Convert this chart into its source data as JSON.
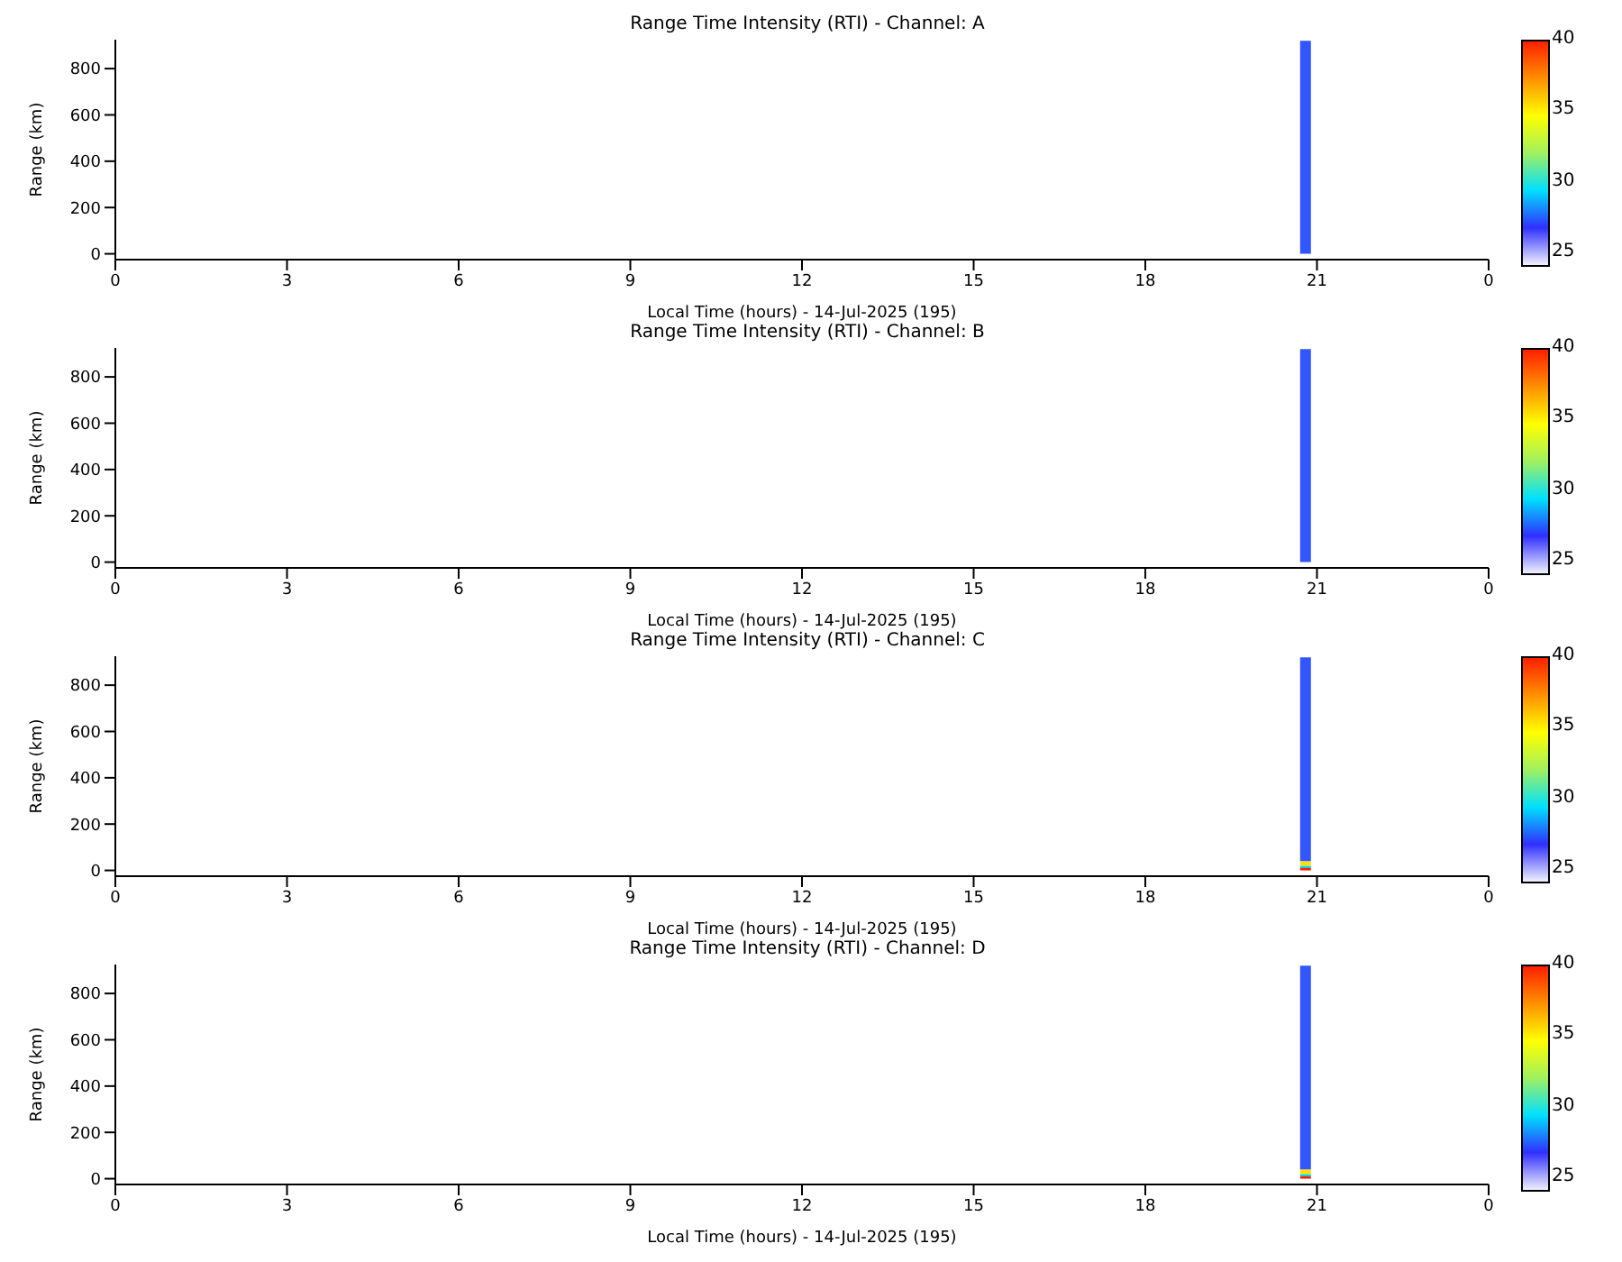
{
  "chart_data": [
    {
      "type": "bar",
      "stacked": true,
      "title": "Range Time Intensity (RTI) - Channel: A",
      "xlabel": "Local Time (hours) - 14-Jul-2025 (195)",
      "ylabel": "Range (km)",
      "x": [
        "2025-07-14T20:48"
      ],
      "series": [
        {
          "color": "#3355ff",
          "values": [
            920
          ]
        }
      ],
      "xlim": [
        "2025-07-14T00:00",
        "2025-07-15T00:00"
      ],
      "xticks": [
        {
          "value": "2025-07-14T00:00",
          "label": "0"
        },
        {
          "value": "2025-07-14T03:00",
          "label": "3"
        },
        {
          "value": "2025-07-14T06:00",
          "label": "6"
        },
        {
          "value": "2025-07-14T09:00",
          "label": "9"
        },
        {
          "value": "2025-07-14T12:00",
          "label": "12"
        },
        {
          "value": "2025-07-14T15:00",
          "label": "15"
        },
        {
          "value": "2025-07-14T18:00",
          "label": "18"
        },
        {
          "value": "2025-07-14T21:00",
          "label": "21"
        },
        {
          "value": "2025-07-15T00:00",
          "label": "0"
        }
      ],
      "ylim": [
        -25,
        925
      ],
      "yticks": [
        0,
        200,
        400,
        600,
        800
      ],
      "clim": [
        24,
        40
      ],
      "cticks": [
        25,
        30,
        35,
        40
      ],
      "grid": false,
      "legend": false
    },
    {
      "type": "bar",
      "stacked": true,
      "title": "Range Time Intensity (RTI) - Channel: B",
      "xlabel": "Local Time (hours) - 14-Jul-2025 (195)",
      "ylabel": "Range (km)",
      "x": [
        "2025-07-14T20:48"
      ],
      "series": [
        {
          "color": "#3355ff",
          "values": [
            920
          ]
        }
      ],
      "xlim": [
        "2025-07-14T00:00",
        "2025-07-15T00:00"
      ],
      "xticks": [
        {
          "value": "2025-07-14T00:00",
          "label": "0"
        },
        {
          "value": "2025-07-14T03:00",
          "label": "3"
        },
        {
          "value": "2025-07-14T06:00",
          "label": "6"
        },
        {
          "value": "2025-07-14T09:00",
          "label": "9"
        },
        {
          "value": "2025-07-14T12:00",
          "label": "12"
        },
        {
          "value": "2025-07-14T15:00",
          "label": "15"
        },
        {
          "value": "2025-07-14T18:00",
          "label": "18"
        },
        {
          "value": "2025-07-14T21:00",
          "label": "21"
        },
        {
          "value": "2025-07-15T00:00",
          "label": "0"
        }
      ],
      "ylim": [
        -25,
        925
      ],
      "yticks": [
        0,
        200,
        400,
        600,
        800
      ],
      "clim": [
        24,
        40
      ],
      "cticks": [
        25,
        30,
        35,
        40
      ],
      "grid": false,
      "legend": false
    },
    {
      "type": "bar",
      "stacked": true,
      "title": "Range Time Intensity (RTI) - Channel: C",
      "xlabel": "Local Time (hours) - 14-Jul-2025 (195)",
      "ylabel": "Range (km)",
      "x": [
        "2025-07-14T20:48"
      ],
      "series": [
        {
          "color": "#ff2000",
          "values": [
            10
          ]
        },
        {
          "color": "#00d0ff",
          "values": [
            10
          ]
        },
        {
          "color": "#ffe000",
          "values": [
            20
          ]
        },
        {
          "color": "#3355ff",
          "values": [
            880
          ]
        }
      ],
      "xlim": [
        "2025-07-14T00:00",
        "2025-07-15T00:00"
      ],
      "xticks": [
        {
          "value": "2025-07-14T00:00",
          "label": "0"
        },
        {
          "value": "2025-07-14T03:00",
          "label": "3"
        },
        {
          "value": "2025-07-14T06:00",
          "label": "6"
        },
        {
          "value": "2025-07-14T09:00",
          "label": "9"
        },
        {
          "value": "2025-07-14T12:00",
          "label": "12"
        },
        {
          "value": "2025-07-14T15:00",
          "label": "15"
        },
        {
          "value": "2025-07-14T18:00",
          "label": "18"
        },
        {
          "value": "2025-07-14T21:00",
          "label": "21"
        },
        {
          "value": "2025-07-15T00:00",
          "label": "0"
        }
      ],
      "ylim": [
        -25,
        925
      ],
      "yticks": [
        0,
        200,
        400,
        600,
        800
      ],
      "clim": [
        24,
        40
      ],
      "cticks": [
        25,
        30,
        35,
        40
      ],
      "grid": false,
      "legend": false
    },
    {
      "type": "bar",
      "stacked": true,
      "title": "Range Time Intensity (RTI) - Channel: D",
      "xlabel": "Local Time (hours) - 14-Jul-2025 (195)",
      "ylabel": "Range (km)",
      "x": [
        "2025-07-14T20:48"
      ],
      "series": [
        {
          "color": "#ff2000",
          "values": [
            10
          ]
        },
        {
          "color": "#00d0ff",
          "values": [
            10
          ]
        },
        {
          "color": "#ffe000",
          "values": [
            20
          ]
        },
        {
          "color": "#3355ff",
          "values": [
            880
          ]
        }
      ],
      "xlim": [
        "2025-07-14T00:00",
        "2025-07-15T00:00"
      ],
      "xticks": [
        {
          "value": "2025-07-14T00:00",
          "label": "0"
        },
        {
          "value": "2025-07-14T03:00",
          "label": "3"
        },
        {
          "value": "2025-07-14T06:00",
          "label": "6"
        },
        {
          "value": "2025-07-14T09:00",
          "label": "9"
        },
        {
          "value": "2025-07-14T12:00",
          "label": "12"
        },
        {
          "value": "2025-07-14T15:00",
          "label": "15"
        },
        {
          "value": "2025-07-14T18:00",
          "label": "18"
        },
        {
          "value": "2025-07-14T21:00",
          "label": "21"
        },
        {
          "value": "2025-07-15T00:00",
          "label": "0"
        }
      ],
      "ylim": [
        -25,
        925
      ],
      "yticks": [
        0,
        200,
        400,
        600,
        800
      ],
      "clim": [
        24,
        40
      ],
      "cticks": [
        25,
        30,
        35,
        40
      ],
      "grid": false,
      "legend": false
    }
  ]
}
